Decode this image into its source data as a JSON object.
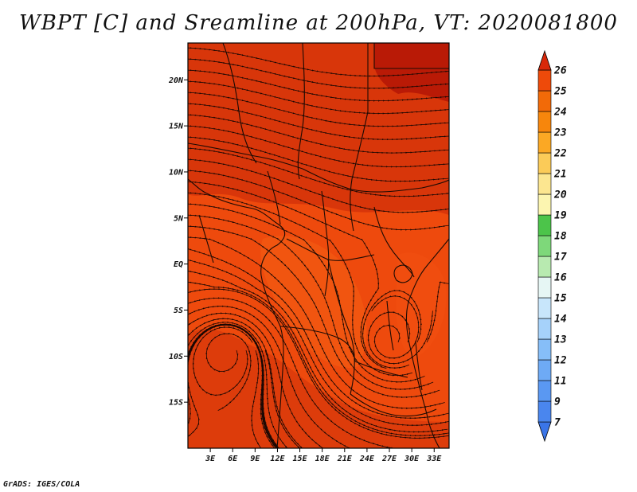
{
  "title": "WBPT [C] and Sreamline at 200hPa, VT: 2020081800",
  "credit": "GrADS: IGES/COLA",
  "map": {
    "lon_range": [
      0,
      35
    ],
    "lat_range": [
      -20,
      24
    ],
    "lon_ticks": [
      {
        "value": 3,
        "label": "3E"
      },
      {
        "value": 6,
        "label": "6E"
      },
      {
        "value": 9,
        "label": "9E"
      },
      {
        "value": 12,
        "label": "12E"
      },
      {
        "value": 15,
        "label": "15E"
      },
      {
        "value": 18,
        "label": "18E"
      },
      {
        "value": 21,
        "label": "21E"
      },
      {
        "value": 24,
        "label": "24E"
      },
      {
        "value": 27,
        "label": "27E"
      },
      {
        "value": 30,
        "label": "30E"
      },
      {
        "value": 33,
        "label": "33E"
      }
    ],
    "lat_ticks": [
      {
        "value": 20,
        "label": "20N"
      },
      {
        "value": 15,
        "label": "15N"
      },
      {
        "value": 10,
        "label": "10N"
      },
      {
        "value": 5,
        "label": "5N"
      },
      {
        "value": 0,
        "label": "EQ"
      },
      {
        "value": -5,
        "label": "5S"
      },
      {
        "value": -10,
        "label": "10S"
      },
      {
        "value": -15,
        "label": "15S"
      }
    ],
    "colors": {
      "background": "#ee4a0d",
      "warm": "#cc2a08",
      "warmest": "#b81806",
      "cool": "#f25a12",
      "borders": "#1a0a04",
      "streamlines": "#1a0804"
    }
  },
  "colorbar": {
    "levels": [
      "7",
      "9",
      "11",
      "12",
      "13",
      "14",
      "15",
      "16",
      "17",
      "18",
      "19",
      "20",
      "21",
      "22",
      "23",
      "24",
      "25",
      "26"
    ],
    "colors": [
      "#3a75e8",
      "#4a86ee",
      "#5a98f2",
      "#6eaaf5",
      "#86bef8",
      "#a6d2fa",
      "#c8e6fb",
      "#e6f6f4",
      "#b8eab0",
      "#7ed87a",
      "#4cc44a",
      "#fcf5b0",
      "#fce690",
      "#fbcb58",
      "#fba824",
      "#f7860c",
      "#f26a08",
      "#ee4a0a",
      "#d8280a"
    ]
  }
}
